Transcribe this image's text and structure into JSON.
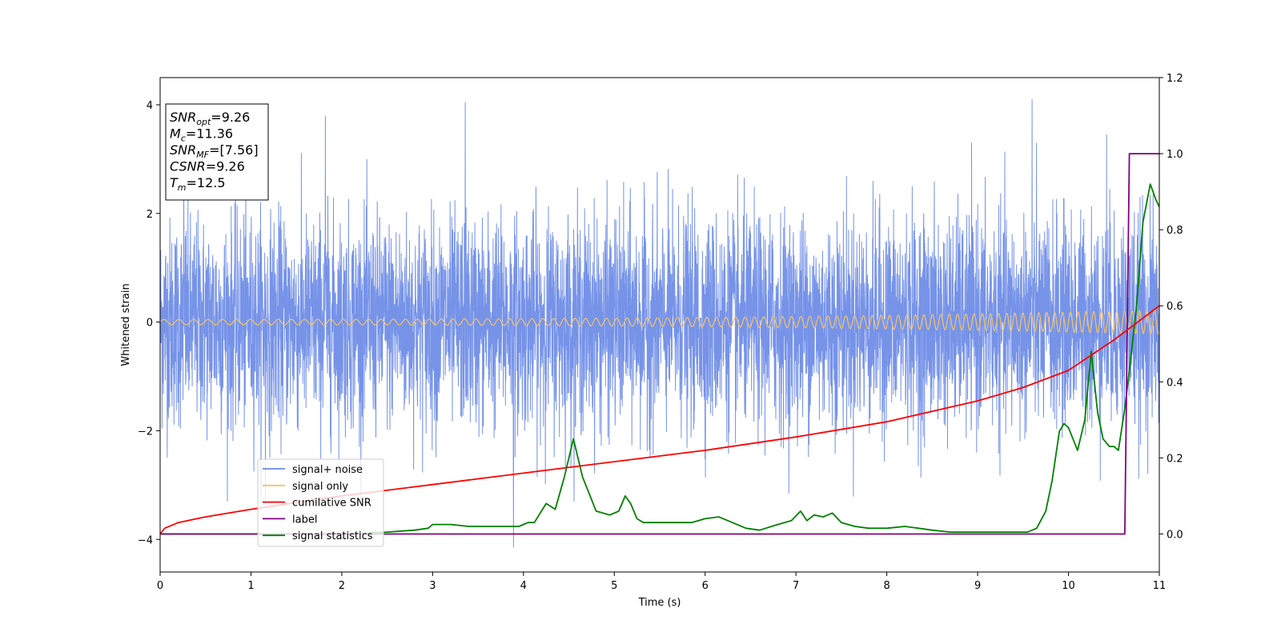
{
  "chart_data": {
    "type": "line",
    "title": "",
    "xlabel": "Time (s)",
    "ylabel": "Whitened strain",
    "xlim": [
      0,
      11
    ],
    "ylim": [
      -4.6,
      4.5
    ],
    "y2lim": [
      -0.1,
      1.2
    ],
    "x_ticks": [
      0,
      1,
      2,
      3,
      4,
      5,
      6,
      7,
      8,
      9,
      10,
      11
    ],
    "y_ticks": [
      -4,
      -2,
      0,
      2,
      4
    ],
    "y2_ticks": [
      "0.0",
      "0.2",
      "0.4",
      "0.6",
      "0.8",
      "1.0",
      "1.2"
    ],
    "grid": false,
    "legend_position": "lower-left",
    "colors": {
      "noise": "#6a8ae6",
      "signal": "#f5c26b",
      "csnr": "#ff0000",
      "label": "#800080",
      "stats": "#008000"
    },
    "series": [
      {
        "name": "signal+ noise",
        "axis": "left",
        "description_values": {
          "sample_rate_hz": "dense noise",
          "typical_range": [
            -2.5,
            2.5
          ],
          "extremes": [
            -4.2,
            4.1
          ]
        },
        "x": [
          0.26,
          1.82,
          3.36,
          9.6,
          10.42,
          3.89,
          1.16
        ],
        "values": [
          2.55,
          3.8,
          4.05,
          4.1,
          3.45,
          -4.15,
          -3.3
        ]
      },
      {
        "name": "signal only",
        "axis": "left",
        "amplitude_start": 0.05,
        "amplitude_end": 0.22,
        "x": [
          0,
          11
        ],
        "values": [
          0,
          0
        ]
      },
      {
        "name": "cumilative SNR",
        "axis": "right",
        "x": [
          0,
          0.05,
          0.2,
          0.5,
          1,
          2,
          3,
          4,
          5,
          6,
          7,
          8,
          9,
          9.5,
          10,
          10.5,
          11
        ],
        "values": [
          0.0,
          0.015,
          0.03,
          0.045,
          0.065,
          0.1,
          0.13,
          0.16,
          0.19,
          0.22,
          0.255,
          0.295,
          0.35,
          0.385,
          0.43,
          0.51,
          0.6
        ]
      },
      {
        "name": "label",
        "axis": "right",
        "x": [
          0,
          10.62,
          10.67,
          11
        ],
        "values": [
          0,
          0,
          1.0,
          1.0
        ]
      },
      {
        "name": "signal statistics",
        "axis": "right",
        "x": [
          0,
          1,
          2,
          2.5,
          2.8,
          2.95,
          3,
          3.2,
          3.4,
          3.6,
          3.8,
          3.95,
          4.05,
          4.12,
          4.25,
          4.35,
          4.45,
          4.55,
          4.65,
          4.8,
          4.95,
          5.05,
          5.12,
          5.18,
          5.25,
          5.32,
          5.45,
          5.6,
          5.75,
          5.85,
          6.0,
          6.15,
          6.3,
          6.45,
          6.6,
          6.8,
          6.95,
          7.05,
          7.12,
          7.2,
          7.3,
          7.4,
          7.5,
          7.65,
          7.8,
          8.0,
          8.2,
          8.35,
          8.5,
          8.7,
          9.0,
          9.3,
          9.55,
          9.65,
          9.75,
          9.82,
          9.9,
          9.95,
          10.0,
          10.1,
          10.18,
          10.25,
          10.32,
          10.38,
          10.45,
          10.5,
          10.55,
          10.62,
          10.68,
          10.75,
          10.82,
          10.9,
          10.96,
          11.0
        ],
        "values": [
          0,
          0,
          0,
          0.005,
          0.01,
          0.015,
          0.025,
          0.025,
          0.02,
          0.02,
          0.02,
          0.02,
          0.03,
          0.03,
          0.08,
          0.065,
          0.15,
          0.25,
          0.15,
          0.06,
          0.05,
          0.06,
          0.1,
          0.08,
          0.04,
          0.03,
          0.03,
          0.03,
          0.03,
          0.03,
          0.04,
          0.045,
          0.03,
          0.015,
          0.01,
          0.025,
          0.035,
          0.06,
          0.035,
          0.05,
          0.045,
          0.055,
          0.03,
          0.02,
          0.015,
          0.015,
          0.02,
          0.015,
          0.01,
          0.005,
          0.005,
          0.005,
          0.005,
          0.015,
          0.06,
          0.14,
          0.27,
          0.29,
          0.28,
          0.22,
          0.3,
          0.48,
          0.32,
          0.25,
          0.23,
          0.23,
          0.22,
          0.33,
          0.45,
          0.6,
          0.82,
          0.92,
          0.88,
          0.86
        ]
      }
    ],
    "annotation_box": {
      "lines": [
        {
          "base": "SNR",
          "sub": "opt",
          "value": "=9.26"
        },
        {
          "base": "M",
          "sub": "c",
          "value": "=11.36"
        },
        {
          "base": "SNR",
          "sub": "MF",
          "value": "=[7.56]"
        },
        {
          "base": "CSNR",
          "sub": "",
          "value": "=9.26"
        },
        {
          "base": "T",
          "sub": "m",
          "value": "=12.5"
        }
      ]
    }
  }
}
